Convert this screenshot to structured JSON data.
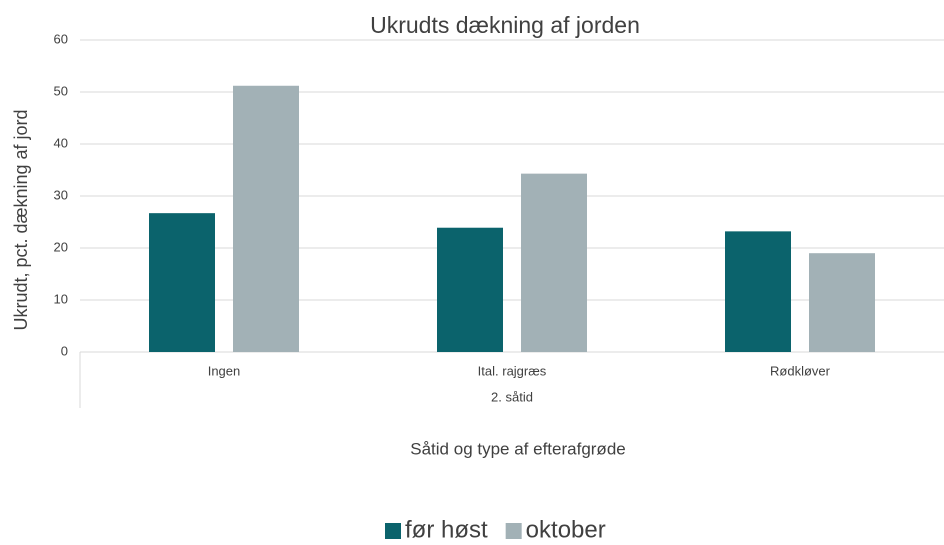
{
  "chart_data": {
    "type": "bar",
    "title": "Ukrudts dækning af jorden",
    "x_label": "Såtid og type af efterafgrøde",
    "y_label": "Ukrudt, pct. dækning af jord",
    "group_label": "2. såtid",
    "categories": [
      "Ingen",
      "Ital. rajgræs",
      "Rødkløver"
    ],
    "series": [
      {
        "name": "før høst",
        "color": "#0b636c",
        "values": [
          26.7,
          23.9,
          23.2
        ]
      },
      {
        "name": "oktober",
        "color": "#a2b1b6",
        "values": [
          51.2,
          34.3,
          19.0
        ]
      }
    ],
    "ylim": [
      0,
      60
    ],
    "yticks": [
      0,
      10,
      20,
      30,
      40,
      50,
      60
    ],
    "grid": true,
    "legend": "bottom"
  }
}
